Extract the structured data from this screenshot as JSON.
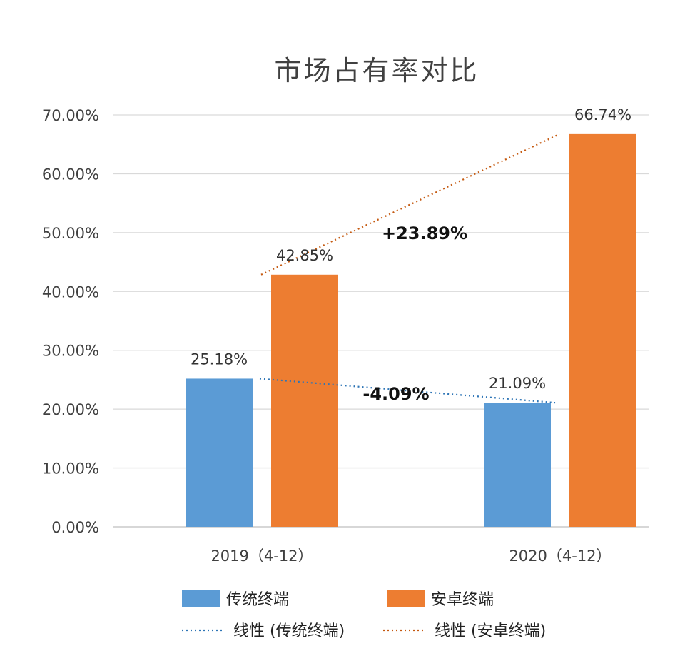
{
  "chart_data": {
    "type": "bar",
    "title": "市场占有率对比",
    "categories": [
      "2019（4-12）",
      "2020（4-12）"
    ],
    "series": [
      {
        "name": "传统终端",
        "values": [
          25.18,
          21.09
        ],
        "labels": [
          "25.18%",
          "21.09%"
        ],
        "color": "#5b9bd5"
      },
      {
        "name": "安卓终端",
        "values": [
          42.85,
          66.74
        ],
        "labels": [
          "42.85%",
          "66.74%"
        ],
        "color": "#ed7d31"
      }
    ],
    "trendlines": [
      {
        "name": "线性 (传统终端)",
        "series": 0,
        "color": "#2e75b6",
        "annotation": "-4.09%"
      },
      {
        "name": "线性 (安卓终端)",
        "series": 1,
        "color": "#c55a11",
        "annotation": "+23.89%"
      }
    ],
    "yticks": [
      "0.00%",
      "10.00%",
      "20.00%",
      "30.00%",
      "40.00%",
      "50.00%",
      "60.00%",
      "70.00%"
    ],
    "ytick_values": [
      0,
      10,
      20,
      30,
      40,
      50,
      60,
      70
    ],
    "ylim": [
      0,
      70
    ],
    "grid": true,
    "legend_position": "bottom"
  }
}
